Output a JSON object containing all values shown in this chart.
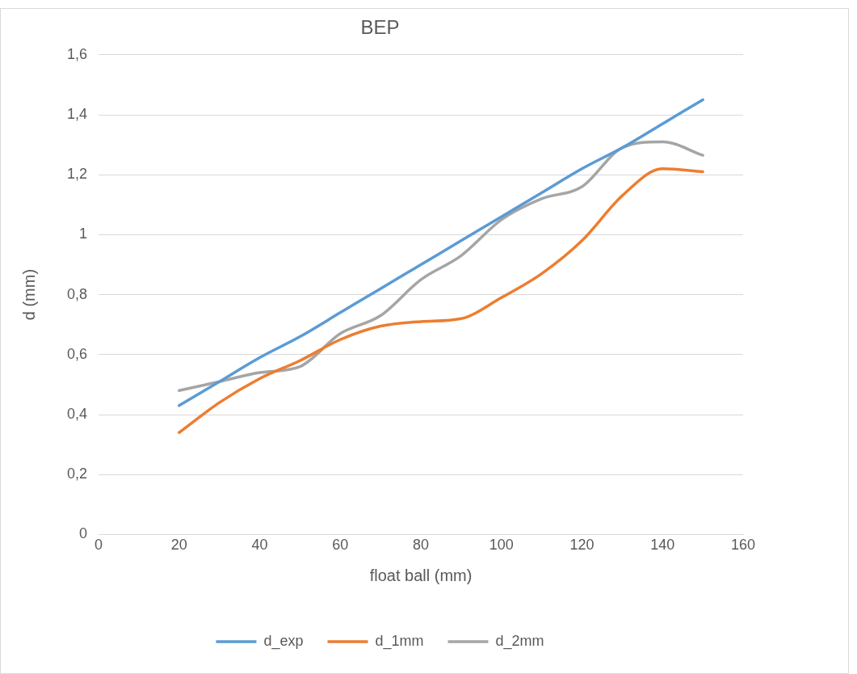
{
  "chart_data": {
    "type": "line",
    "title": "BEP",
    "xlabel": "float ball (mm)",
    "ylabel": "d (mm)",
    "x": [
      20,
      30,
      40,
      50,
      60,
      70,
      80,
      90,
      100,
      110,
      120,
      130,
      140,
      150
    ],
    "series": [
      {
        "name": "d_exp",
        "color": "#5b9bd5",
        "values": [
          0.43,
          0.51,
          0.59,
          0.66,
          0.74,
          0.82,
          0.9,
          0.98,
          1.06,
          1.14,
          1.22,
          1.29,
          1.37,
          1.45
        ]
      },
      {
        "name": "d_1mm",
        "color": "#ed7d31",
        "values": [
          0.34,
          0.44,
          0.52,
          0.58,
          0.65,
          0.695,
          0.71,
          0.72,
          0.79,
          0.87,
          0.98,
          1.13,
          1.22,
          1.21
        ]
      },
      {
        "name": "d_2mm",
        "color": "#a5a5a5",
        "values": [
          0.48,
          0.51,
          0.54,
          0.56,
          0.67,
          0.73,
          0.85,
          0.93,
          1.05,
          1.12,
          1.16,
          1.29,
          1.31,
          1.265
        ]
      }
    ],
    "xlim": [
      0,
      160
    ],
    "xticks": [
      0,
      20,
      40,
      60,
      80,
      100,
      120,
      140,
      160
    ],
    "ylim": [
      0,
      1.6
    ],
    "yticks": [
      0,
      {
        "value": 0.2,
        "label": "0,2"
      },
      {
        "value": 0.4,
        "label": "0,4"
      },
      {
        "value": 0.6,
        "label": "0,6"
      },
      {
        "value": 0.8,
        "label": "0,8"
      },
      1,
      {
        "value": 1.2,
        "label": "1,2"
      },
      {
        "value": 1.4,
        "label": "1,4"
      },
      {
        "value": 1.6,
        "label": "1,6"
      }
    ],
    "grid": "y",
    "legend": "bottom",
    "marker": "none",
    "line_style": "solid"
  }
}
